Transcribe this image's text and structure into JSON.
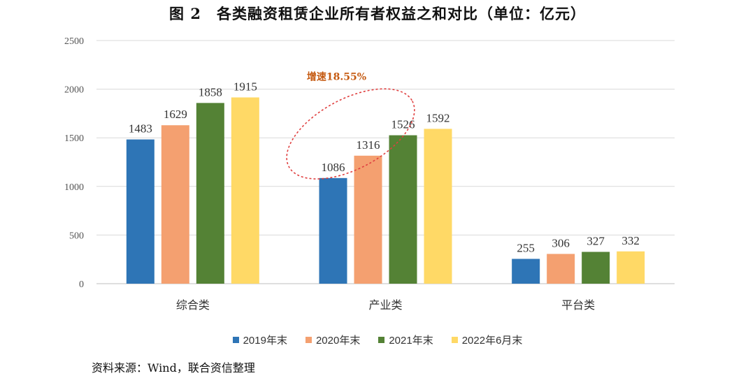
{
  "figure": {
    "title": "图 2　各类融资租赁企业所有者权益之和对比（单位：亿元）",
    "source": "资料来源：Wind，联合资信整理"
  },
  "chart_data": {
    "type": "bar",
    "title": "图 2　各类融资租赁企业所有者权益之和对比（单位：亿元）",
    "categories": [
      "综合类",
      "产业类",
      "平台类"
    ],
    "series": [
      {
        "name": "2019年末",
        "color": "#2e75b6",
        "values": [
          1483,
          1086,
          255
        ]
      },
      {
        "name": "2020年末",
        "color": "#f4a070",
        "values": [
          1629,
          1316,
          306
        ]
      },
      {
        "name": "2021年末",
        "color": "#548235",
        "values": [
          1858,
          1526,
          327
        ]
      },
      {
        "name": "2022年6月末",
        "color": "#ffd966",
        "values": [
          1915,
          1592,
          332
        ]
      }
    ],
    "yticks": [
      0,
      500,
      1000,
      1500,
      2000,
      2500
    ],
    "ylim": [
      0,
      2500
    ],
    "grid": true,
    "legend": "bottom",
    "annotation": {
      "text": "增速18.55%",
      "color": "#c55a11",
      "target_category": "产业类"
    }
  }
}
